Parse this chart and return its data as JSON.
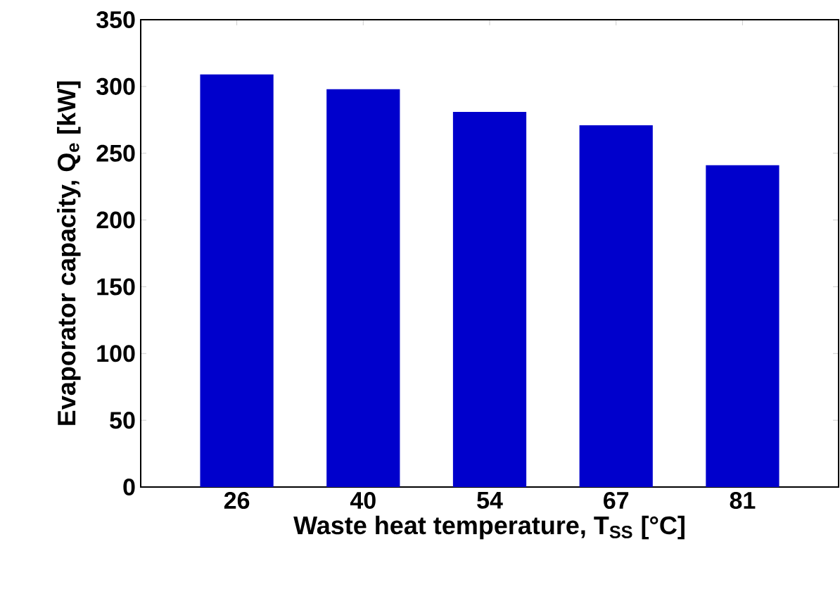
{
  "chart_data": {
    "type": "bar",
    "xlabel": "Waste heat temperature, T$_{SS}$  [°C]",
    "ylabel": "Evaporator capacity, Q$_{e}$ [kW]",
    "categories": [
      "26",
      "40",
      "54",
      "67",
      "81"
    ],
    "values": [
      309,
      298,
      281,
      271,
      241
    ],
    "color": "#0000cc",
    "ylim": [
      0,
      350
    ],
    "yticks": [
      0,
      50,
      100,
      150,
      200,
      250,
      300,
      350
    ],
    "grid": false
  }
}
